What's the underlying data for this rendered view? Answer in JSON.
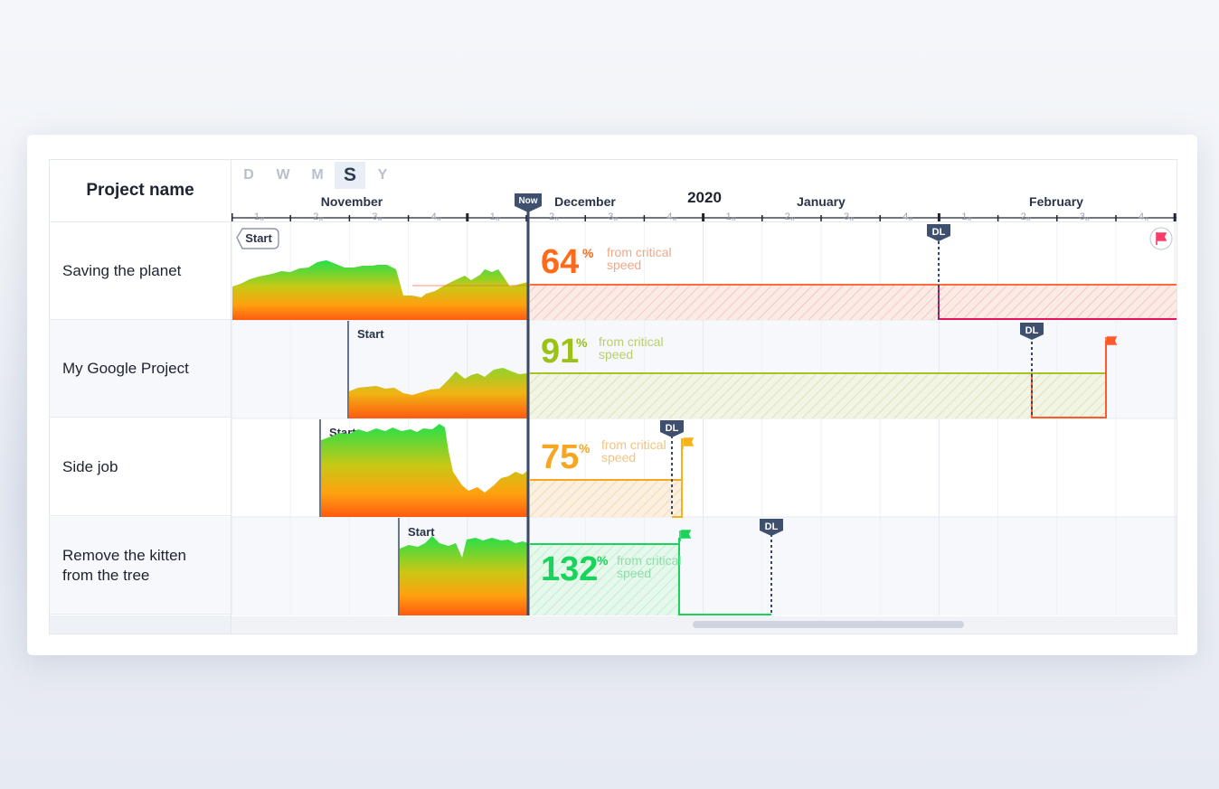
{
  "header": {
    "project_name_label": "Project name"
  },
  "zoom_options": [
    "D",
    "W",
    "M",
    "S",
    "Y"
  ],
  "zoom_selected": "S",
  "timeline": {
    "year_label": "2020",
    "now_label": "Now",
    "months": [
      "November",
      "December",
      "January",
      "February"
    ],
    "week_ticks": [
      "1",
      "2",
      "3",
      "4",
      "1",
      "2",
      "3",
      "4",
      "1",
      "2",
      "3",
      "4",
      "1",
      "2",
      "3",
      "4"
    ],
    "week_unit": "w"
  },
  "markers": {
    "start_label": "Start",
    "dl_label": "DL"
  },
  "speed_caption_line1": "from critical",
  "speed_caption_line2": "speed",
  "projects": [
    {
      "name": "Saving the planet",
      "percent": "64",
      "color": "#ff6a1a",
      "deadline_color": "#e8145c",
      "flag_color": "#ff3b6a"
    },
    {
      "name": "My Google Project",
      "percent": "91",
      "color": "#9cc21a",
      "deadline_color": "#ff5a2a",
      "flag_color": "#ff5a2a"
    },
    {
      "name": "Side job",
      "percent": "75",
      "color": "#f5a623",
      "deadline_color": "#f5b31a",
      "flag_color": "#f5b31a"
    },
    {
      "name": "Remove the kitten\nfrom the tree",
      "percent": "132",
      "color": "#19d45a",
      "deadline_color": "#19d45a",
      "flag_color": "#19d45a"
    }
  ],
  "percent_sign": "%",
  "colors": {
    "now_line": "#3a4a66",
    "gradient_top": "#22e04a",
    "gradient_mid": "#f3b214",
    "gradient_bottom": "#ff5a10"
  }
}
